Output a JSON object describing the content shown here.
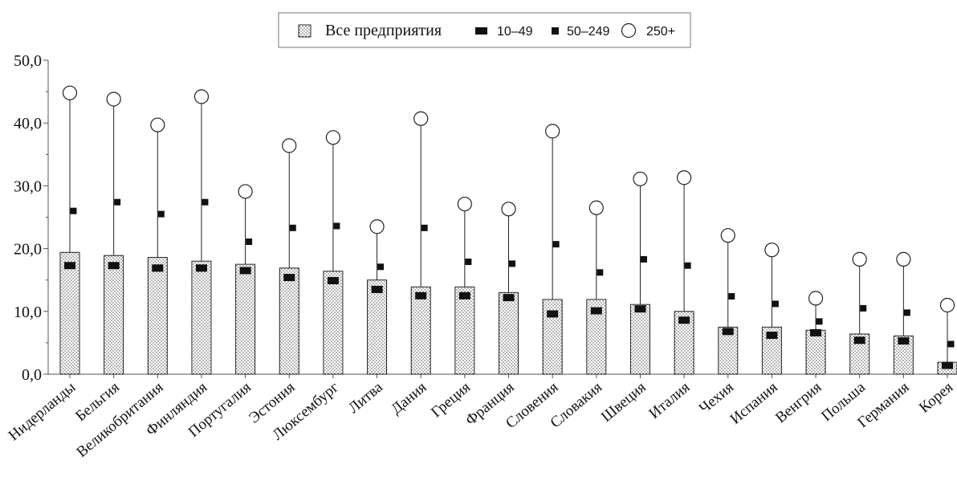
{
  "chart_data": {
    "type": "bar",
    "title": "",
    "xlabel": "",
    "ylabel": "",
    "ylim": [
      0,
      50
    ],
    "yticks": [
      "0,0",
      "10,0",
      "20,0",
      "30,0",
      "40,0",
      "50,0"
    ],
    "grid": false,
    "legend_position": "top-center",
    "categories": [
      "Нидерланды",
      "Бельгия",
      "Великобритания",
      "Финляндия",
      "Португалия",
      "Эстония",
      "Люксембург",
      "Литва",
      "Дания",
      "Греция",
      "Франция",
      "Словения",
      "Словакия",
      "Швеция",
      "Италия",
      "Чехия",
      "Испания",
      "Венгрия",
      "Польша",
      "Германия",
      "Корея"
    ],
    "series": [
      {
        "name": "Все предприятия",
        "style": "dotted-bar",
        "values": [
          19.4,
          18.9,
          18.6,
          18.0,
          17.5,
          16.9,
          16.4,
          15.0,
          13.9,
          13.9,
          13.0,
          11.9,
          11.9,
          11.1,
          10.0,
          7.5,
          7.5,
          7.0,
          6.4,
          6.1,
          1.9
        ]
      },
      {
        "name": "10–49",
        "style": "large-square",
        "values": [
          17.3,
          17.3,
          16.9,
          16.9,
          16.5,
          15.4,
          14.9,
          13.5,
          12.5,
          12.5,
          12.2,
          9.6,
          10.1,
          10.4,
          8.6,
          6.8,
          6.2,
          6.6,
          5.4,
          5.3,
          1.4
        ]
      },
      {
        "name": "50–249",
        "style": "small-square",
        "values": [
          26.0,
          27.4,
          25.5,
          27.4,
          21.1,
          23.3,
          23.6,
          17.1,
          23.3,
          17.9,
          17.6,
          20.7,
          16.2,
          18.3,
          17.3,
          12.4,
          11.2,
          8.4,
          10.5,
          9.8,
          4.8
        ]
      },
      {
        "name": "250+",
        "style": "open-circle",
        "values": [
          44.8,
          43.8,
          39.7,
          44.2,
          29.1,
          36.4,
          37.7,
          23.5,
          40.7,
          27.1,
          26.3,
          38.7,
          26.5,
          31.1,
          31.3,
          22.1,
          19.8,
          12.1,
          18.3,
          18.3,
          11.0
        ]
      }
    ]
  },
  "colors": {
    "ink": "#111111",
    "axis": "#555555",
    "bar_fill": "#ffffff"
  }
}
